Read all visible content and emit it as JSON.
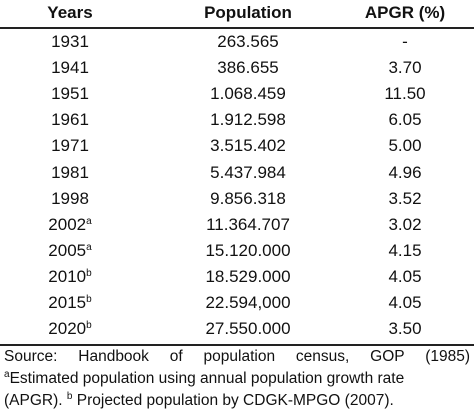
{
  "table": {
    "header": [
      "Years",
      "Population",
      "APGR (%)"
    ],
    "rows": [
      {
        "year": "1931",
        "mark": null,
        "population": "263.565",
        "apgr": "-"
      },
      {
        "year": "1941",
        "mark": null,
        "population": "386.655",
        "apgr": "3.70"
      },
      {
        "year": "1951",
        "mark": null,
        "population": "1.068.459",
        "apgr": "11.50"
      },
      {
        "year": "1961",
        "mark": null,
        "population": "1.912.598",
        "apgr": "6.05"
      },
      {
        "year": "1971",
        "mark": null,
        "population": "3.515.402",
        "apgr": "5.00"
      },
      {
        "year": "1981",
        "mark": null,
        "population": "5.437.984",
        "apgr": "4.96"
      },
      {
        "year": "1998",
        "mark": null,
        "population": "9.856.318",
        "apgr": "3.52"
      },
      {
        "year": "2002",
        "mark": "a",
        "population": "11.364.707",
        "apgr": "3.02"
      },
      {
        "year": "2005",
        "mark": "a",
        "population": "15.120.000",
        "apgr": "4.15"
      },
      {
        "year": "2010",
        "mark": "b",
        "population": "18.529.000",
        "apgr": "4.05"
      },
      {
        "year": "2015",
        "mark": "b",
        "population": "22.594,000",
        "apgr": "4.05"
      },
      {
        "year": "2020",
        "mark": "b",
        "population": "27.550.000",
        "apgr": "3.50"
      }
    ]
  },
  "footer": {
    "source": "Source: Handbook of population census, GOP (1985)",
    "note_a_mark": "a",
    "note_a_text": "Estimated population using annual population growth rate",
    "line3_prefix": "(APGR).",
    "note_b_mark": "b",
    "note_b_text": "Projected population by CDGK-MPGO (2007)."
  }
}
